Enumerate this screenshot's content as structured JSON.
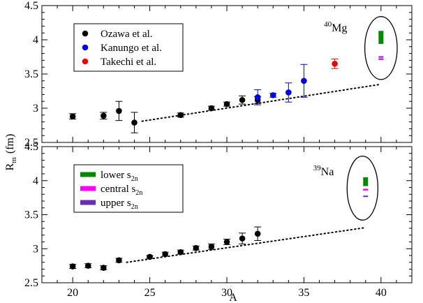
{
  "chart_data": {
    "type": "scatter",
    "xlabel": "A",
    "ylabel": "R",
    "ylabel_sub": "m",
    "ylabel_unit": "(fm)",
    "xlim": [
      18,
      42
    ],
    "x_ticks": [
      20,
      25,
      30,
      35,
      40
    ],
    "panels": [
      {
        "id": "top",
        "ylim": [
          2.5,
          4.5
        ],
        "y_ticks": [
          "2.5",
          "3",
          "3.5",
          "4",
          "4.5"
        ],
        "legend": [
          {
            "label": "Ozawa et al.",
            "color": "#000000"
          },
          {
            "label": "Kanungo et al.",
            "color": "#0000dd"
          },
          {
            "label": "Takechi et al.",
            "color": "#ee0000"
          }
        ],
        "series": [
          {
            "name": "Ozawa et al.",
            "color": "#000000",
            "points": [
              {
                "x": 20,
                "y": 2.88,
                "err": 0.04
              },
              {
                "x": 22,
                "y": 2.89,
                "err": 0.05
              },
              {
                "x": 23,
                "y": 2.96,
                "err": 0.14
              },
              {
                "x": 24,
                "y": 2.79,
                "err": 0.15
              },
              {
                "x": 27,
                "y": 2.9,
                "err": 0.03
              },
              {
                "x": 29,
                "y": 3.0,
                "err": 0.03
              },
              {
                "x": 30,
                "y": 3.06,
                "err": 0.03
              },
              {
                "x": 31,
                "y": 3.12,
                "err": 0.06
              },
              {
                "x": 32,
                "y": 3.12,
                "err": 0.05
              }
            ]
          },
          {
            "name": "Kanungo et al.",
            "color": "#0000dd",
            "points": [
              {
                "x": 32,
                "y": 3.16,
                "err": 0.11
              },
              {
                "x": 33,
                "y": 3.19,
                "err": 0.03
              },
              {
                "x": 34,
                "y": 3.23,
                "err": 0.14
              },
              {
                "x": 35,
                "y": 3.4,
                "err": 0.24
              }
            ]
          },
          {
            "name": "Takechi et al.",
            "color": "#ee0000",
            "points": [
              {
                "x": 37,
                "y": 3.65,
                "err": 0.07
              }
            ]
          }
        ],
        "trend": {
          "x": [
            24.5,
            40
          ],
          "y": [
            2.81,
            3.35
          ]
        },
        "prediction": {
          "x": 40,
          "green": [
            3.94,
            4.13
          ],
          "magenta": [
            3.71,
            3.73
          ],
          "purple": [
            3.74,
            3.76
          ]
        },
        "nucleus_label": {
          "mass": "40",
          "symbol": "Mg",
          "x": 36.3,
          "y": 4.12
        },
        "ellipse": {
          "cx": 40,
          "cy": 3.88,
          "rx": 1.05,
          "ry": 0.46
        }
      },
      {
        "id": "bottom",
        "ylim": [
          2.5,
          4.5
        ],
        "y_ticks": [
          "2.5",
          "3",
          "3.5",
          "4",
          "4.5"
        ],
        "legend": [
          {
            "label": "lower s",
            "sub": "2n",
            "color": "#008800"
          },
          {
            "label": "central s",
            "sub": "2n",
            "color": "#ff00ff"
          },
          {
            "label": "upper s",
            "sub": "2n",
            "color": "#6a2fb0"
          }
        ],
        "series": [
          {
            "name": "Ozawa et al.",
            "color": "#000000",
            "points": [
              {
                "x": 20,
                "y": 2.74,
                "err": 0.03
              },
              {
                "x": 21,
                "y": 2.75,
                "err": 0.03
              },
              {
                "x": 22,
                "y": 2.72,
                "err": 0.03
              },
              {
                "x": 23,
                "y": 2.83,
                "err": 0.03
              },
              {
                "x": 25,
                "y": 2.88,
                "err": 0.02
              },
              {
                "x": 26,
                "y": 2.92,
                "err": 0.03
              },
              {
                "x": 27,
                "y": 2.95,
                "err": 0.03
              },
              {
                "x": 28,
                "y": 3.01,
                "err": 0.03
              },
              {
                "x": 29,
                "y": 3.03,
                "err": 0.04
              },
              {
                "x": 30,
                "y": 3.1,
                "err": 0.04
              },
              {
                "x": 31,
                "y": 3.15,
                "err": 0.08
              },
              {
                "x": 32,
                "y": 3.22,
                "err": 0.1
              }
            ]
          }
        ],
        "trend": {
          "x": [
            23.5,
            39
          ],
          "y": [
            2.8,
            3.31
          ]
        },
        "prediction": {
          "x": 39,
          "green": [
            3.92,
            4.05
          ],
          "magenta": [
            3.86,
            3.88
          ],
          "purple": [
            3.76,
            3.78
          ]
        },
        "nucleus_label": {
          "mass": "39",
          "symbol": "Na",
          "x": 35.6,
          "y": 4.08
        },
        "ellipse": {
          "cx": 38.8,
          "cy": 3.89,
          "rx": 1.0,
          "ry": 0.47
        }
      }
    ]
  }
}
